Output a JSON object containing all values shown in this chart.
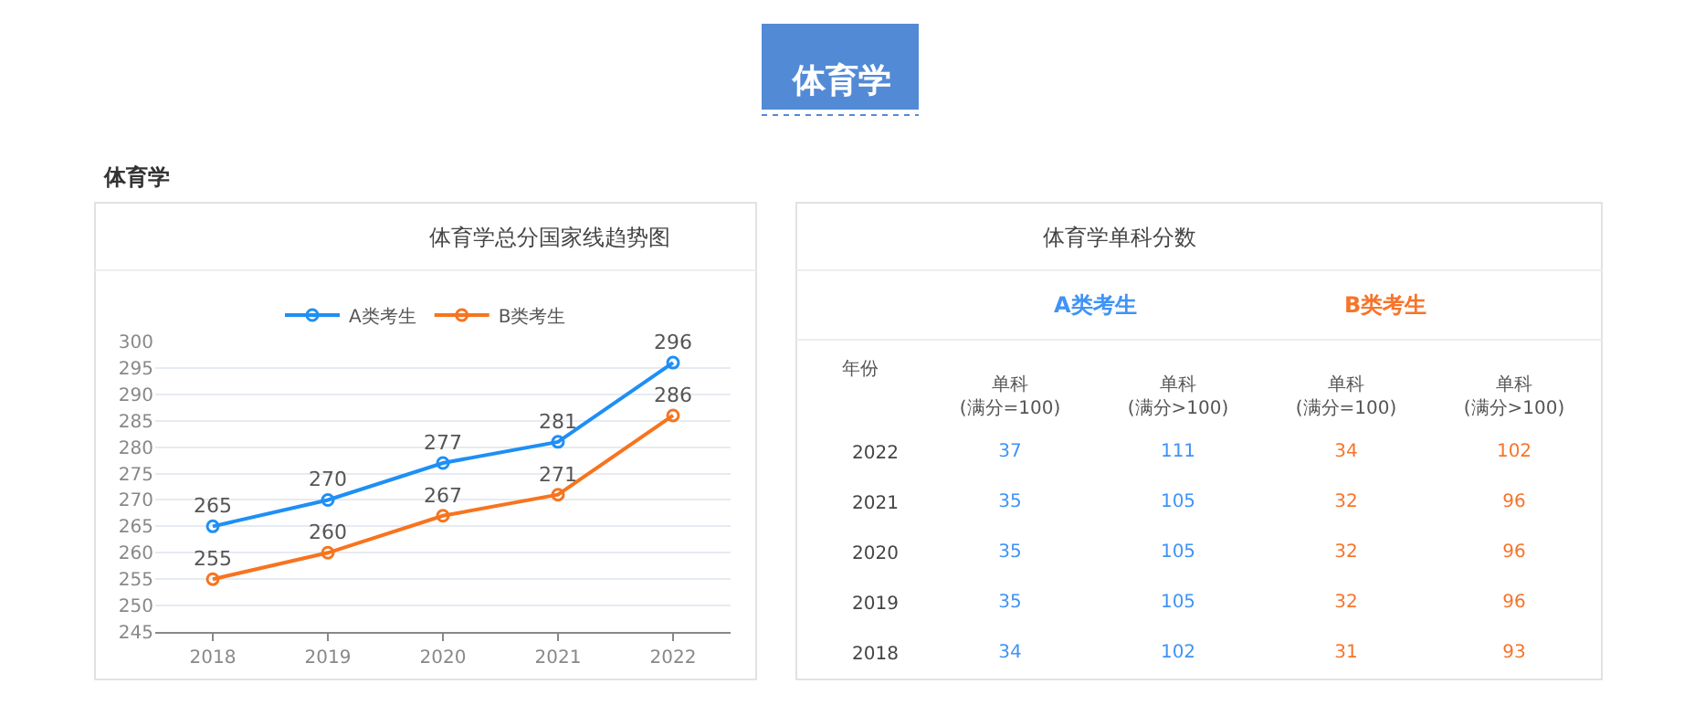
{
  "chart_data": [
    {
      "type": "line",
      "title": "体育学总分国家线趋势图",
      "annotations": [
        "体育学",
        "体育学"
      ],
      "categories": [
        "2018",
        "2019",
        "2020",
        "2021",
        "2022"
      ],
      "series": [
        {
          "name": "A类考生",
          "color": "#1e8ff5",
          "values": [
            265,
            270,
            277,
            281,
            296
          ]
        },
        {
          "name": "B类考生",
          "color": "#f7741e",
          "values": [
            255,
            260,
            267,
            271,
            286
          ]
        }
      ],
      "ylim": [
        245,
        300
      ],
      "yticks": [
        245,
        250,
        255,
        260,
        265,
        270,
        275,
        280,
        285,
        290,
        295,
        300
      ],
      "grid": "y",
      "legend": "top",
      "marker": "circle",
      "line_style": "solid",
      "data_labels": true
    },
    {
      "type": "heatmap",
      "title": "体育学单科分数",
      "ylabel": "年份",
      "annotations": [
        "A类考生",
        "B类考生"
      ],
      "categories": [
        "单科\n(满分=100)",
        "单科\n(满分>100)",
        "单科\n(满分=100)",
        "单科\n(满分>100)"
      ],
      "y_categories": [
        "2022",
        "2021",
        "2020",
        "2019",
        "2018"
      ],
      "cells": [
        [
          37,
          111,
          34,
          102
        ],
        [
          35,
          105,
          32,
          96
        ],
        [
          35,
          105,
          32,
          96
        ],
        [
          35,
          105,
          32,
          96
        ],
        [
          34,
          102,
          31,
          93
        ]
      ],
      "colors": [
        "#3f93f5",
        "#3f93f5",
        "#f7742a",
        "#f7742a"
      ],
      "data_labels": true
    }
  ]
}
